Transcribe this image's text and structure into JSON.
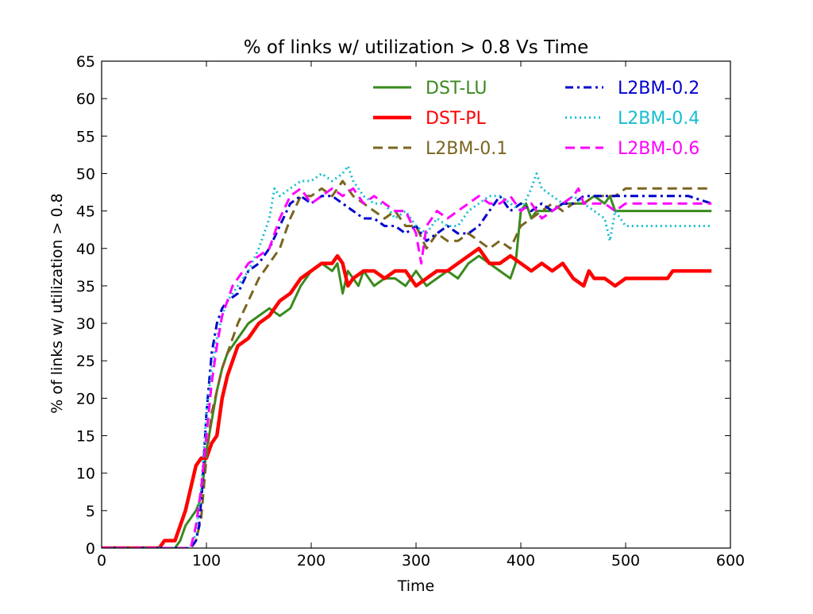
{
  "chart_data": {
    "type": "line",
    "title": "% of links w/ utilization > 0.8 Vs Time",
    "xlabel": "Time",
    "ylabel": "% of links w/ utilization > 0.8",
    "xlim": [
      0,
      600
    ],
    "ylim": [
      0,
      65
    ],
    "xticks": [
      0,
      100,
      200,
      300,
      400,
      500,
      600
    ],
    "yticks": [
      0,
      5,
      10,
      15,
      20,
      25,
      30,
      35,
      40,
      45,
      50,
      55,
      60,
      65
    ],
    "grid": false,
    "legend": "top-right",
    "series": [
      {
        "name": "DST-LU",
        "color": "#3a8a1e",
        "style": "solid",
        "x": [
          0,
          70,
          75,
          80,
          85,
          90,
          93,
          96,
          100,
          105,
          110,
          115,
          120,
          125,
          130,
          140,
          150,
          160,
          170,
          180,
          190,
          200,
          210,
          220,
          225,
          230,
          235,
          240,
          245,
          250,
          260,
          270,
          280,
          290,
          300,
          310,
          320,
          330,
          340,
          350,
          360,
          370,
          380,
          390,
          395,
          400,
          405,
          410,
          415,
          420,
          430,
          440,
          450,
          460,
          470,
          480,
          485,
          490,
          500,
          520,
          540,
          560,
          582
        ],
        "values": [
          0,
          0,
          1,
          3,
          4,
          5,
          6,
          8,
          13,
          17,
          21,
          24,
          26,
          27,
          28,
          30,
          31,
          32,
          31,
          32,
          35,
          37,
          38,
          37,
          38,
          34,
          37,
          36,
          35,
          37,
          35,
          36,
          36,
          35,
          37,
          35,
          36,
          37,
          36,
          38,
          39,
          38,
          37,
          36,
          38,
          45,
          46,
          44,
          45,
          45,
          45,
          46,
          46,
          46,
          47,
          46,
          47,
          45,
          45,
          45,
          45,
          45,
          45
        ]
      },
      {
        "name": "DST-PL",
        "color": "#ff0000",
        "style": "solid",
        "x": [
          0,
          55,
          60,
          70,
          75,
          80,
          85,
          90,
          95,
          100,
          105,
          110,
          115,
          120,
          125,
          130,
          140,
          150,
          160,
          170,
          180,
          190,
          200,
          210,
          220,
          225,
          230,
          235,
          240,
          250,
          260,
          270,
          280,
          290,
          300,
          310,
          320,
          330,
          340,
          350,
          360,
          370,
          380,
          390,
          400,
          410,
          420,
          430,
          440,
          450,
          460,
          465,
          470,
          480,
          490,
          500,
          520,
          540,
          545,
          560,
          582
        ],
        "values": [
          0,
          0,
          1,
          1,
          3,
          5,
          8,
          11,
          12,
          12,
          14,
          15,
          20,
          23,
          25,
          27,
          28,
          30,
          31,
          33,
          34,
          36,
          37,
          38,
          38,
          39,
          38,
          35,
          36,
          37,
          37,
          36,
          37,
          37,
          35,
          36,
          37,
          37,
          38,
          39,
          40,
          38,
          38,
          39,
          38,
          37,
          38,
          37,
          38,
          36,
          35,
          37,
          36,
          36,
          35,
          36,
          36,
          36,
          37,
          37,
          37
        ]
      },
      {
        "name": "L2BM-0.1",
        "color": "#7a6520",
        "style": "dashed",
        "x": [
          0,
          85,
          90,
          95,
          100,
          105,
          110,
          115,
          120,
          130,
          140,
          150,
          160,
          170,
          180,
          190,
          200,
          210,
          220,
          230,
          240,
          250,
          260,
          270,
          280,
          290,
          300,
          310,
          320,
          330,
          340,
          350,
          360,
          370,
          380,
          390,
          400,
          410,
          420,
          430,
          440,
          450,
          460,
          470,
          480,
          490,
          500,
          520,
          540,
          560,
          582
        ],
        "values": [
          0,
          0,
          1,
          4,
          12,
          18,
          21,
          24,
          26,
          30,
          33,
          36,
          38,
          40,
          44,
          47,
          47,
          48,
          47,
          49,
          47,
          46,
          45,
          44,
          45,
          43,
          43,
          40,
          42,
          41,
          41,
          42,
          41,
          40,
          41,
          40,
          43,
          44,
          45,
          46,
          45,
          46,
          46,
          47,
          47,
          47,
          48,
          48,
          48,
          48,
          48
        ]
      },
      {
        "name": "L2BM-0.2",
        "color": "#0000cc",
        "style": "dashdot",
        "x": [
          0,
          85,
          90,
          93,
          96,
          100,
          105,
          110,
          115,
          120,
          130,
          140,
          150,
          160,
          170,
          180,
          190,
          200,
          210,
          220,
          230,
          240,
          250,
          260,
          270,
          280,
          290,
          300,
          310,
          320,
          330,
          340,
          350,
          360,
          370,
          380,
          390,
          400,
          410,
          420,
          430,
          440,
          450,
          460,
          470,
          480,
          490,
          500,
          520,
          540,
          560,
          582
        ],
        "values": [
          0,
          0,
          1,
          3,
          8,
          18,
          26,
          30,
          32,
          33,
          34,
          37,
          38,
          40,
          43,
          46,
          47,
          46,
          47,
          47,
          46,
          45,
          44,
          44,
          43,
          43,
          42,
          43,
          41,
          42,
          43,
          42,
          42,
          43,
          45,
          47,
          45,
          46,
          45,
          46,
          45,
          46,
          46,
          47,
          47,
          47,
          47,
          47,
          47,
          47,
          47,
          46
        ]
      },
      {
        "name": "L2BM-0.4",
        "color": "#17becf",
        "style": "dotted",
        "x": [
          0,
          85,
          90,
          95,
          100,
          105,
          110,
          115,
          120,
          130,
          140,
          150,
          160,
          165,
          170,
          180,
          190,
          200,
          210,
          220,
          230,
          235,
          240,
          250,
          260,
          270,
          280,
          290,
          300,
          310,
          320,
          330,
          340,
          350,
          360,
          370,
          380,
          390,
          400,
          410,
          415,
          420,
          430,
          440,
          450,
          460,
          470,
          480,
          485,
          490,
          500,
          520,
          540,
          560,
          582
        ],
        "values": [
          0,
          0,
          2,
          8,
          18,
          24,
          28,
          31,
          33,
          35,
          37,
          40,
          44,
          48,
          47,
          48,
          49,
          49,
          50,
          49,
          50,
          51,
          49,
          47,
          46,
          46,
          44,
          45,
          43,
          42,
          44,
          43,
          43,
          45,
          46,
          47,
          47,
          46,
          45,
          48,
          50,
          48,
          47,
          46,
          47,
          46,
          45,
          44,
          41,
          45,
          43,
          43,
          43,
          43,
          43
        ]
      },
      {
        "name": "L2BM-0.6",
        "color": "#ff00ff",
        "style": "dashed",
        "x": [
          0,
          85,
          90,
          95,
          100,
          105,
          110,
          115,
          120,
          125,
          130,
          140,
          150,
          160,
          170,
          180,
          190,
          200,
          210,
          220,
          230,
          240,
          250,
          260,
          270,
          280,
          290,
          300,
          305,
          310,
          320,
          330,
          340,
          350,
          360,
          370,
          380,
          390,
          400,
          410,
          420,
          430,
          440,
          450,
          455,
          460,
          470,
          480,
          490,
          500,
          520,
          540,
          560,
          582
        ],
        "values": [
          0,
          0,
          3,
          8,
          15,
          22,
          27,
          31,
          33,
          35,
          36,
          38,
          39,
          40,
          44,
          47,
          48,
          46,
          47,
          48,
          47,
          48,
          46,
          47,
          46,
          45,
          45,
          42,
          38,
          43,
          45,
          44,
          45,
          46,
          47,
          46,
          46,
          47,
          45,
          46,
          44,
          45,
          46,
          47,
          48,
          46,
          46,
          46,
          45,
          46,
          46,
          46,
          46,
          46
        ]
      }
    ]
  }
}
